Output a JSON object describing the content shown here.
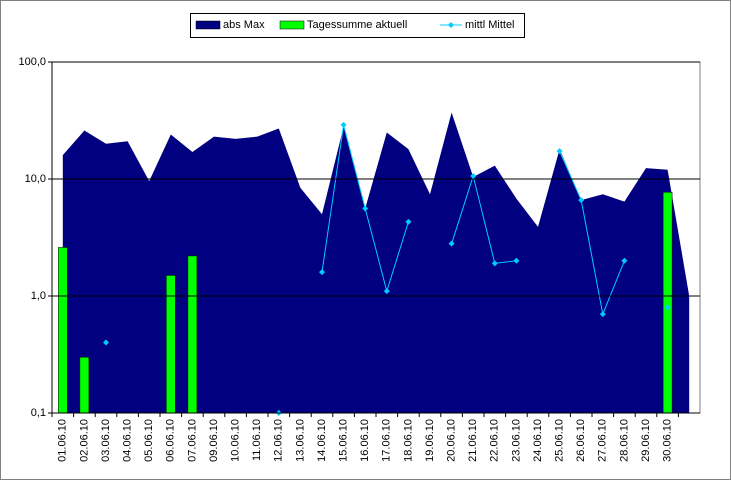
{
  "chart_data": {
    "type": "combo",
    "log_scale": true,
    "grid": true,
    "legend": "top",
    "categories": [
      "01.06.10",
      "02.06.10",
      "03.06.10",
      "04.06.10",
      "05.06.10",
      "06.06.10",
      "07.06.10",
      "09.06.10",
      "10.06.10",
      "11.06.10",
      "12.06.10",
      "13.06.10",
      "14.06.10",
      "15.06.10",
      "16.06.10",
      "17.06.10",
      "18.06.10",
      "19.06.10",
      "20.06.10",
      "21.06.10",
      "22.06.10",
      "23.06.10",
      "24.06.10",
      "25.06.10",
      "26.06.10",
      "27.06.10",
      "28.06.10",
      "29.06.10",
      "30.06.10",
      null
    ],
    "ylim": [
      0.1,
      100
    ],
    "yticks": [
      {
        "value": 0.1,
        "label": "0,1"
      },
      {
        "value": 1,
        "label": "1,0"
      },
      {
        "value": 10,
        "label": "10,0"
      },
      {
        "value": 100,
        "label": "100,0"
      }
    ],
    "series": [
      {
        "name": "abs Max",
        "type": "area",
        "color": "#000080",
        "values": [
          16,
          26,
          20,
          21,
          9.6,
          24,
          17,
          23,
          22,
          23,
          27,
          8.4,
          5,
          28,
          5.6,
          25,
          18,
          7.4,
          37,
          10.4,
          13,
          6.8,
          3.9,
          18,
          6.6,
          7.4,
          6.4,
          12.4,
          12,
          1.0
        ]
      },
      {
        "name": "Tagessumme aktuell",
        "type": "bar",
        "color": "#00ff00",
        "values": [
          2.6,
          0.3,
          null,
          null,
          null,
          1.5,
          2.2,
          null,
          null,
          null,
          null,
          null,
          null,
          null,
          null,
          null,
          null,
          null,
          null,
          null,
          null,
          null,
          null,
          null,
          null,
          null,
          null,
          null,
          7.7,
          null
        ]
      },
      {
        "name": "mittl Mittel",
        "type": "line",
        "color": "#00ccff",
        "values": [
          null,
          null,
          0.4,
          null,
          null,
          null,
          null,
          null,
          null,
          null,
          0.1,
          null,
          1.6,
          29,
          5.6,
          1.1,
          4.3,
          null,
          2.8,
          10.6,
          1.9,
          2.0,
          null,
          17.3,
          6.6,
          0.7,
          2.0,
          null,
          0.8,
          null
        ]
      }
    ]
  }
}
